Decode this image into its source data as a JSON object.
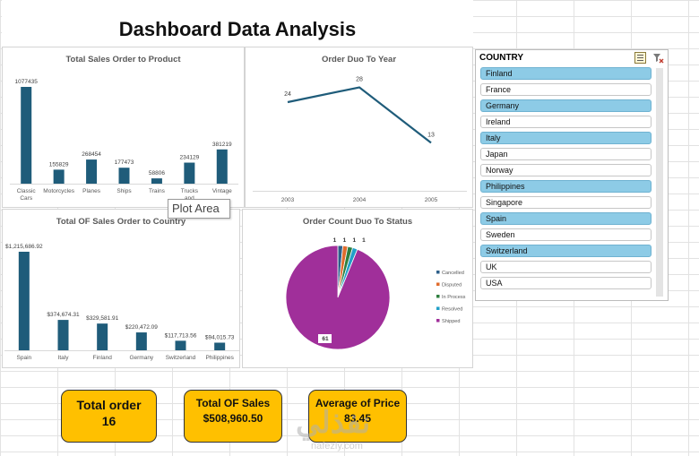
{
  "dashboard": {
    "title": "Dashboard Data Analysis"
  },
  "charts": {
    "product": {
      "type": "bar",
      "title": "Total Sales Order to Product",
      "categories": [
        "Classic Cars",
        "Motorcycles",
        "Planes",
        "Ships",
        "Trains",
        "Trucks and",
        "Vintage"
      ],
      "values": [
        1077435,
        155829,
        268454,
        177473,
        58806,
        234129,
        381219
      ],
      "value_labels": [
        "1077435",
        "155829",
        "268454",
        "177473",
        "58806",
        "234129",
        "381219"
      ],
      "color": "#1f5c7a"
    },
    "year": {
      "type": "line",
      "title": "Order Duo To Year",
      "x": [
        "2003",
        "2004",
        "2005"
      ],
      "values": [
        24,
        28,
        13
      ],
      "value_labels": [
        "24",
        "28",
        "13"
      ],
      "color": "#1f5c7a"
    },
    "country": {
      "type": "bar",
      "title": "Total OF Sales Order to Country",
      "categories": [
        "Spain",
        "Italy",
        "Finland",
        "Germany",
        "Switzerland",
        "Philippines"
      ],
      "values": [
        1215686.92,
        374674.31,
        329581.91,
        220472.09,
        117713.56,
        94015.73
      ],
      "value_labels": [
        "$1,215,686.92",
        "$374,674.31",
        "$329,581.91",
        "$220,472.09",
        "$117,713.56",
        "$94,015.73"
      ],
      "color": "#1f5c7a"
    },
    "status": {
      "type": "pie",
      "title": "Order Count Duo To Status",
      "categories": [
        "Cancelled",
        "Disputed",
        "In Process",
        "Resolved",
        "Shipped"
      ],
      "values": [
        1,
        1,
        1,
        1,
        61
      ],
      "value_labels": [
        "1",
        "1",
        "1",
        "1",
        "61"
      ],
      "colors": [
        "#2e5f8a",
        "#e06c2e",
        "#2f7f3f",
        "#22a0c8",
        "#a02f9a"
      ]
    }
  },
  "tooltip": {
    "text": "Plot Area"
  },
  "slicer": {
    "title": "COUNTRY",
    "items": [
      {
        "label": "Finland",
        "selected": true
      },
      {
        "label": "France",
        "selected": false
      },
      {
        "label": "Germany",
        "selected": true
      },
      {
        "label": "Ireland",
        "selected": false
      },
      {
        "label": "Italy",
        "selected": true
      },
      {
        "label": "Japan",
        "selected": false
      },
      {
        "label": "Norway",
        "selected": false
      },
      {
        "label": "Philippines",
        "selected": true
      },
      {
        "label": "Singapore",
        "selected": false
      },
      {
        "label": "Spain",
        "selected": true
      },
      {
        "label": "Sweden",
        "selected": false
      },
      {
        "label": "Switzerland",
        "selected": true
      },
      {
        "label": "UK",
        "selected": false
      },
      {
        "label": "USA",
        "selected": false
      }
    ],
    "multi_select_icon": "multi-select-icon",
    "clear_filter_icon": "clear-filter-icon"
  },
  "kpis": {
    "total_order": {
      "label": "Total order",
      "value": "16"
    },
    "total_sales": {
      "label": "Total OF Sales",
      "value": "$508,960.50"
    },
    "avg_price": {
      "label": "Average of Price",
      "value": "83.45"
    }
  },
  "watermark": {
    "text": "نفذلي",
    "sub": "nafezly.com"
  }
}
